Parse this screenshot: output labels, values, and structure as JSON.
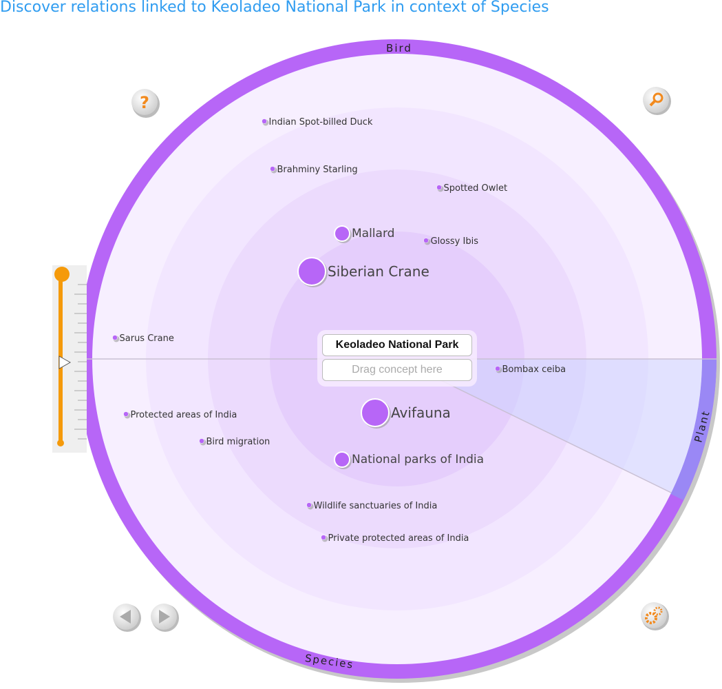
{
  "title": "Discover relations linked to Keoladeo National Park in context of Species",
  "center": {
    "concept": "Keoladeo National Park",
    "drop_placeholder": "Drag concept here"
  },
  "rings": {
    "top": "Bird",
    "bottom": "Species",
    "right": "Plant"
  },
  "colors": {
    "ring": "#b766f7",
    "plant_ring": "#9a88f5",
    "slider": "#f59a0a",
    "title": "#2f9cf0"
  },
  "nodes": [
    {
      "label": "Indian Spot-billed Duck",
      "size": "small"
    },
    {
      "label": "Brahminy Starling",
      "size": "small"
    },
    {
      "label": "Spotted Owlet",
      "size": "small"
    },
    {
      "label": "Mallard",
      "size": "medium"
    },
    {
      "label": "Glossy Ibis",
      "size": "small"
    },
    {
      "label": "Siberian Crane",
      "size": "large"
    },
    {
      "label": "Sarus Crane",
      "size": "small"
    },
    {
      "label": "Bombax ceiba",
      "size": "small"
    },
    {
      "label": "Protected areas of India",
      "size": "small"
    },
    {
      "label": "Avifauna",
      "size": "large"
    },
    {
      "label": "Bird migration",
      "size": "small"
    },
    {
      "label": "National parks of India",
      "size": "medium"
    },
    {
      "label": "Wildlife sanctuaries of India",
      "size": "small"
    },
    {
      "label": "Private protected areas of India",
      "size": "small"
    }
  ],
  "buttons": {
    "help": "help-icon",
    "search": "search-icon",
    "prev": "arrow-left-icon",
    "next": "arrow-right-icon",
    "settings": "gear-icon"
  },
  "slider": {
    "level": 0
  }
}
